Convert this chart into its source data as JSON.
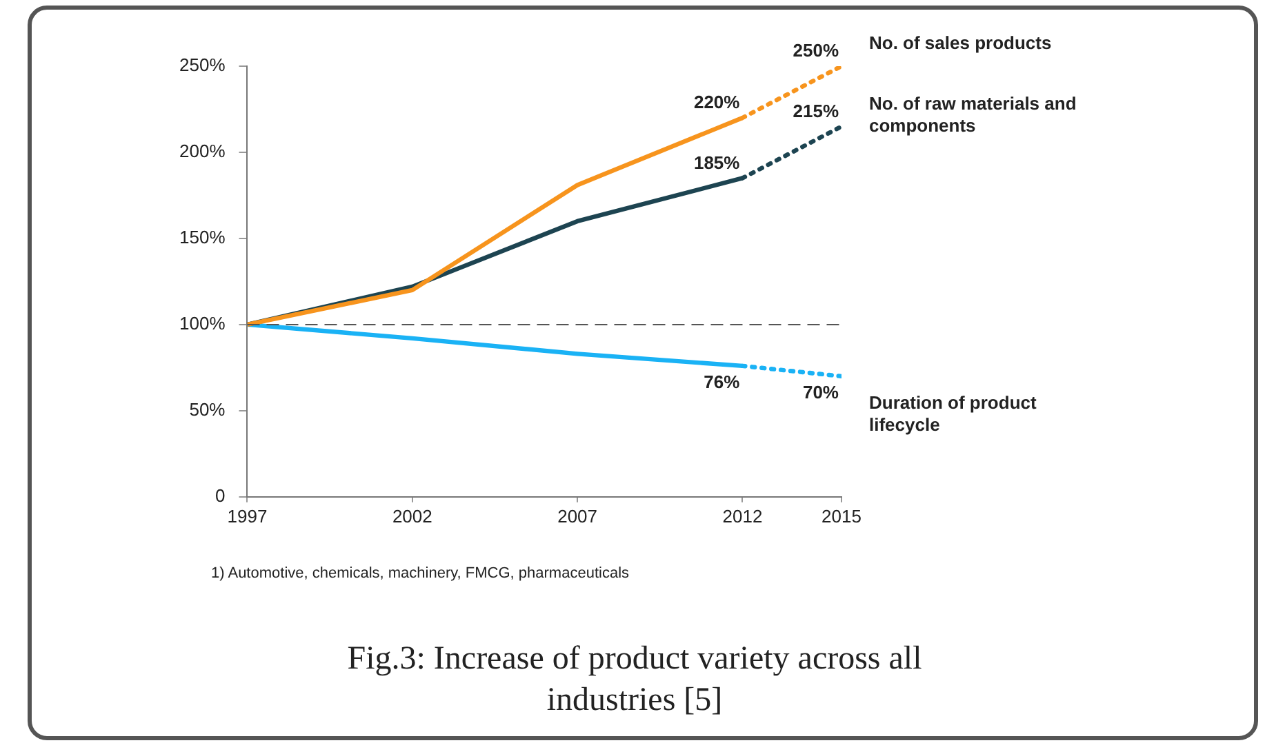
{
  "chart_data": {
    "type": "line",
    "title": "Fig.3: Increase of product variety across all industries [5]",
    "annotations": [
      "1) Automotive, chemicals, machinery, FMCG, pharmaceuticals"
    ],
    "x": [
      1997,
      2002,
      2007,
      2012,
      2015
    ],
    "series": [
      {
        "color": "#f7941d",
        "line_style": "solid",
        "values": [
          100,
          120,
          181,
          220,
          null
        ],
        "value_labels": [
          null,
          null,
          null,
          "220%",
          null
        ]
      },
      {
        "name": "No. of sales products",
        "color": "#f7941d",
        "line_style": "dotted",
        "values": [
          null,
          null,
          null,
          220,
          250
        ],
        "value_labels": [
          null,
          null,
          null,
          null,
          "250%"
        ]
      },
      {
        "color": "#1d4451",
        "line_style": "solid",
        "values": [
          100,
          122,
          160,
          185,
          null
        ],
        "value_labels": [
          null,
          null,
          null,
          "185%",
          null
        ]
      },
      {
        "name": "No. of raw materials and components",
        "color": "#1d4451",
        "line_style": "dotted",
        "values": [
          null,
          null,
          null,
          185,
          215
        ],
        "value_labels": [
          null,
          null,
          null,
          null,
          "215%"
        ]
      },
      {
        "color": "#1ab2f5",
        "line_style": "solid",
        "values": [
          100,
          92,
          83,
          76,
          null
        ],
        "value_labels": [
          null,
          null,
          null,
          "76%",
          null
        ]
      },
      {
        "name": "Duration of product lifecycle",
        "color": "#1ab2f5",
        "line_style": "dotted",
        "values": [
          null,
          null,
          null,
          76,
          70
        ],
        "value_labels": [
          null,
          null,
          null,
          null,
          "70%"
        ]
      }
    ],
    "xlim": [
      1997,
      2015
    ],
    "xticks": [
      1997,
      2002,
      2007,
      2012,
      2015
    ],
    "ylim": [
      0,
      250
    ],
    "yticks": [
      0,
      {
        "value": 50,
        "label": "50%"
      },
      {
        "value": 100,
        "label": "100%"
      },
      {
        "value": 150,
        "label": "150%"
      },
      {
        "value": 200,
        "label": "200%"
      },
      {
        "value": 250,
        "label": "250%"
      }
    ],
    "ref_lines": [
      {
        "axis": "y",
        "value": 100,
        "color": "#555555",
        "line_style": "dashed"
      }
    ],
    "grid": false,
    "legend": false,
    "marker": "none"
  }
}
